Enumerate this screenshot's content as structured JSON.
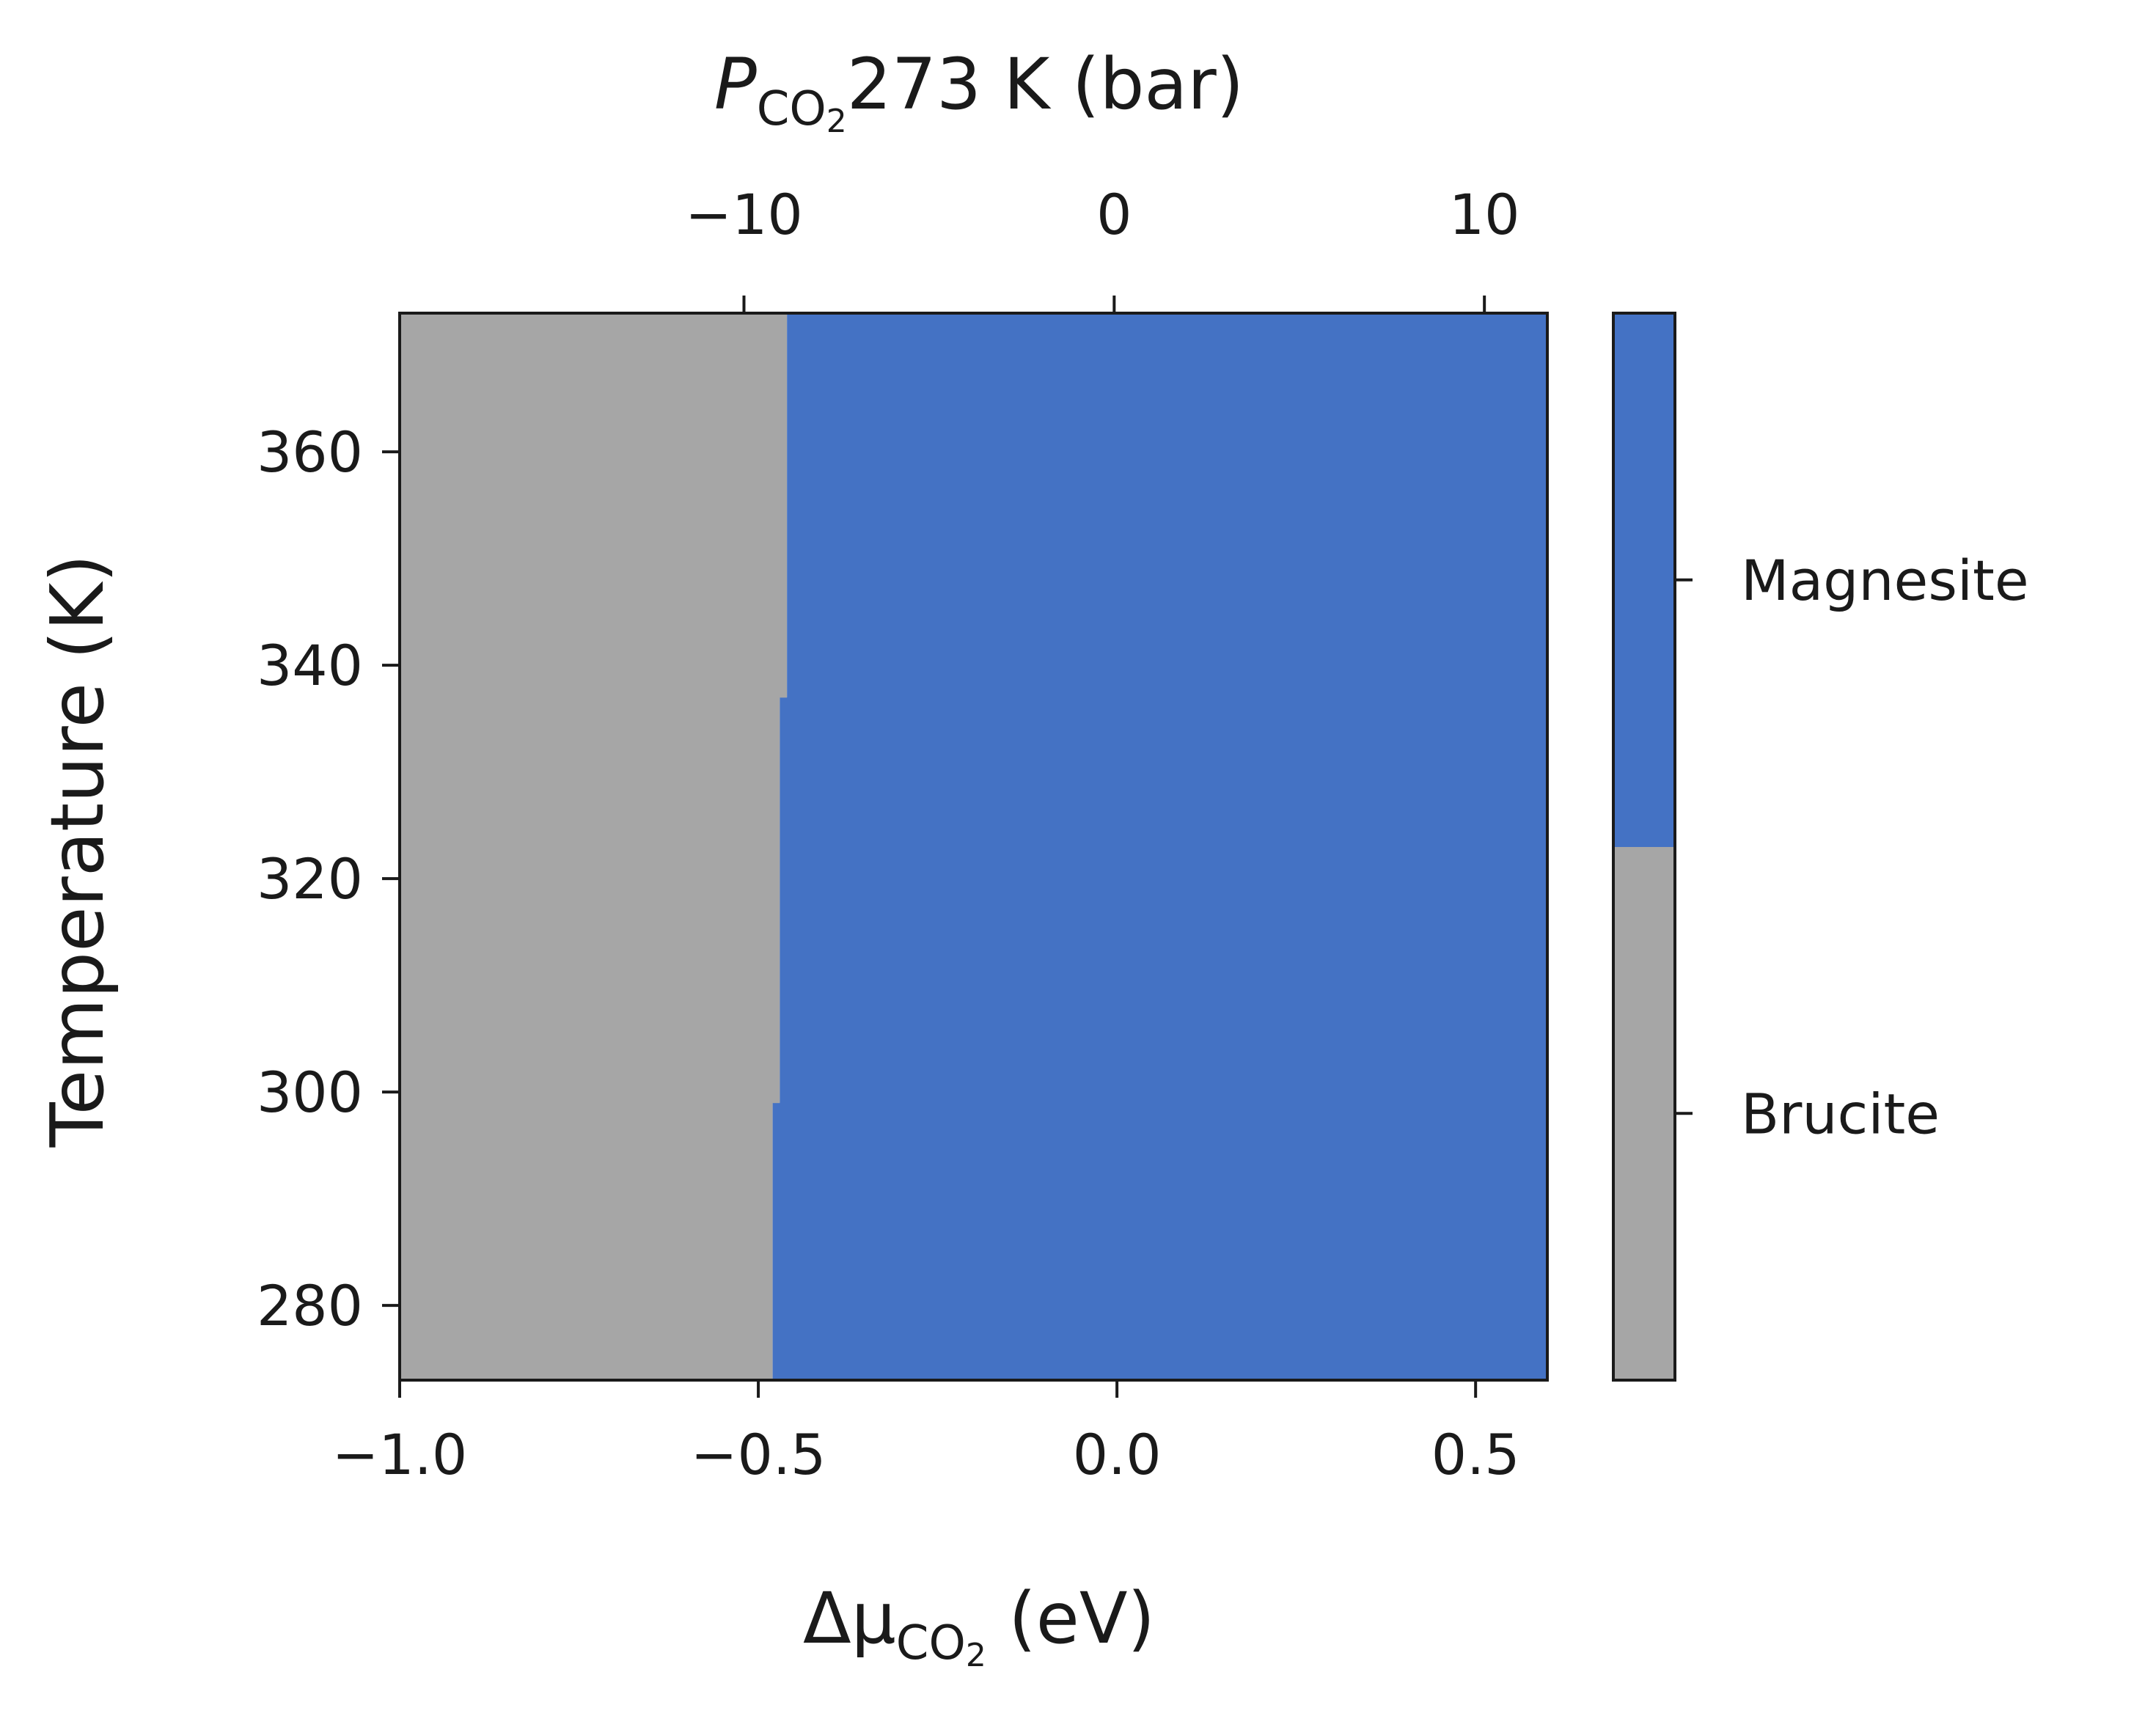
{
  "chart_data": {
    "type": "heatmap",
    "title": "",
    "xlabel": "Δμ",
    "xlabel_sub": "CO",
    "xlabel_sub2": "2",
    "xlabel_unit": " (eV)",
    "x2label": "P",
    "x2label_sub": "CO",
    "x2label_sub2": "2",
    "x2label_rest": "273 K (bar)",
    "ylabel": "Temperature (K)",
    "xlim": [
      -1.0,
      0.6
    ],
    "ylim": [
      273,
      373
    ],
    "x2lim": [
      -19.3,
      11.7
    ],
    "xticks": [
      -1.0,
      -0.5,
      0.0,
      0.5
    ],
    "xtick_labels": [
      "−1.0",
      "−0.5",
      "0.0",
      "0.5"
    ],
    "yticks": [
      280,
      300,
      320,
      340,
      360
    ],
    "ytick_labels": [
      "280",
      "300",
      "320",
      "340",
      "360"
    ],
    "x2ticks": [
      -10,
      0,
      10
    ],
    "x2tick_labels": [
      "−10",
      "0",
      "10"
    ],
    "boundary": [
      {
        "t_min": 273,
        "t_max": 299,
        "x": -0.48
      },
      {
        "t_min": 299,
        "t_max": 337,
        "x": -0.47
      },
      {
        "t_min": 337,
        "t_max": 373,
        "x": -0.46
      }
    ],
    "phases": [
      {
        "name": "Brucite",
        "color": "#a6a6a6"
      },
      {
        "name": "Magnesite",
        "color": "#4472c4"
      }
    ],
    "colorbar_labels": [
      "Brucite",
      "Magnesite"
    ],
    "grid": false
  }
}
